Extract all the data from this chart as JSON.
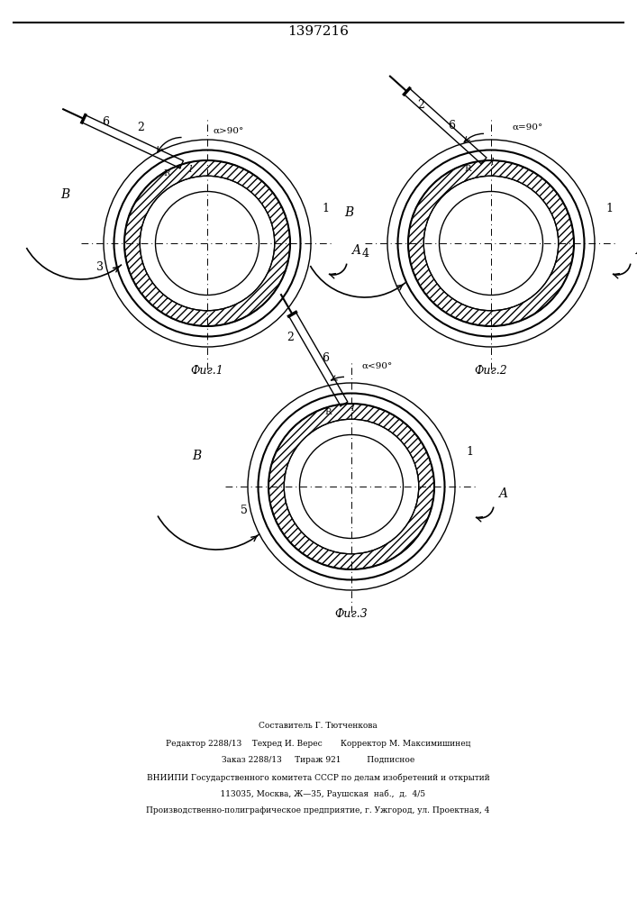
{
  "title": "1397216",
  "title_fontsize": 11,
  "fig1_label": "Фиг.1",
  "fig2_label": "Фиг.2",
  "fig3_label": "Фиг.3",
  "footer_lines": [
    "Составитель Г. Тютченкова",
    "Редактор 2288/13    Техред И. Верес       Корректор М. Максимишинец",
    "Заказ 2288/13     Тираж 921          Подписное",
    "ВНИИПИ Государственного комитета СССР по делам изобретений и открытий",
    "    113035, Москва, Ж—35, Раушская  наб.,  д.  4/5",
    "Производственно-полиграфическое предприятие, г. Ужгород, ул. Проектная, 4"
  ]
}
